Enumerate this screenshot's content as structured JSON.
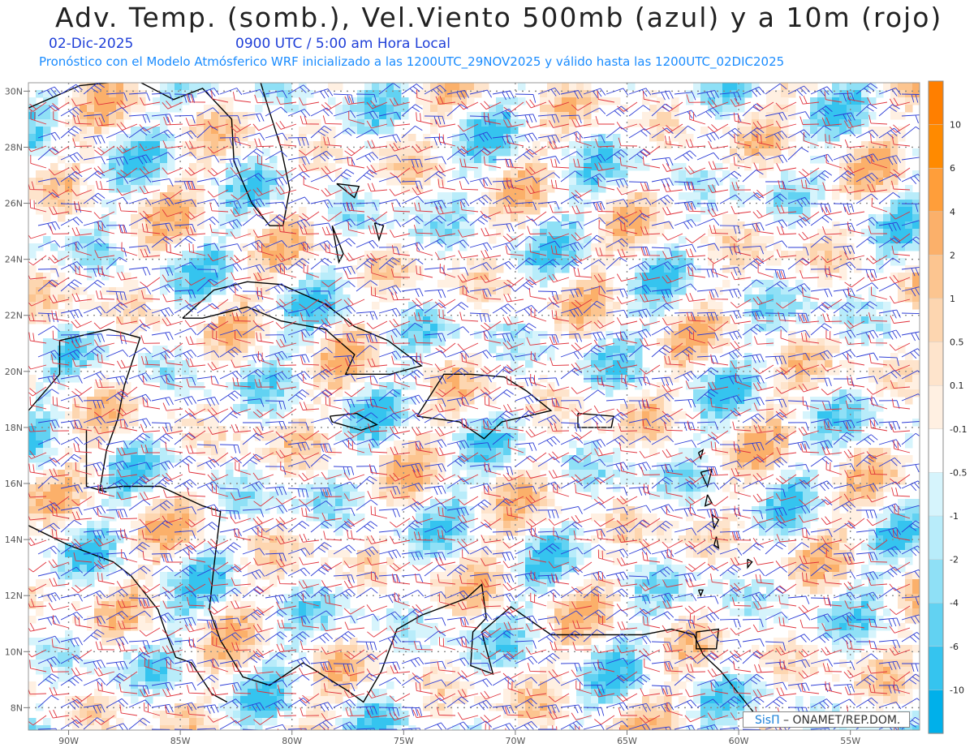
{
  "header": {
    "title": "Adv. Temp. (somb.), Vel.Viento 500mb (azul) y a 10m (rojo)",
    "date": "02-Dic-2025",
    "time": "0900 UTC / 5:00 am Hora Local",
    "subtitle": "Pronóstico con el Modelo Atmósferico WRF inicializado a las 1200UTC_29NOV2025 y válido hasta las  1200UTC_02DIC2025"
  },
  "map": {
    "lat_labels": [
      "30N",
      "28N",
      "26N",
      "24N",
      "22N",
      "20N",
      "18N",
      "16N",
      "14N",
      "12N",
      "10N",
      "8N"
    ],
    "lon_labels": [
      "90W",
      "85W",
      "80W",
      "75W",
      "70W",
      "65W",
      "60W",
      "55W"
    ],
    "lat_values": [
      30,
      28,
      26,
      24,
      22,
      20,
      18,
      16,
      14,
      12,
      10,
      8
    ],
    "lon_values": [
      -90,
      -85,
      -80,
      -75,
      -70,
      -65,
      -60,
      -55
    ],
    "extent": {
      "lon_min": -91.8,
      "lon_max": -51.9,
      "lat_min": 7.2,
      "lat_max": 30.3
    },
    "grid": true,
    "wind_500mb_color": "#2b3bd6",
    "wind_10m_color": "#e0303a",
    "coast_color": "#000000"
  },
  "colorbar": {
    "labels": [
      "10",
      "6",
      "4",
      "2",
      "1",
      "0.5",
      "0.1",
      "-0.1",
      "-0.5",
      "-1",
      "-2",
      "-4",
      "-6",
      "-10"
    ],
    "colors": [
      "#ff8a00",
      "#ff9e3a",
      "#fbb06a",
      "#fcc590",
      "#fdd6b0",
      "#fee4cc",
      "#fff0e2",
      "#ffffff",
      "#d6f4fc",
      "#b8ecfa",
      "#8fe0f6",
      "#62d2f2",
      "#35c4ef",
      "#0fb8ec"
    ]
  },
  "credit": {
    "brand": "SisΠ",
    "text": " – ONAMET/REP.DOM."
  }
}
